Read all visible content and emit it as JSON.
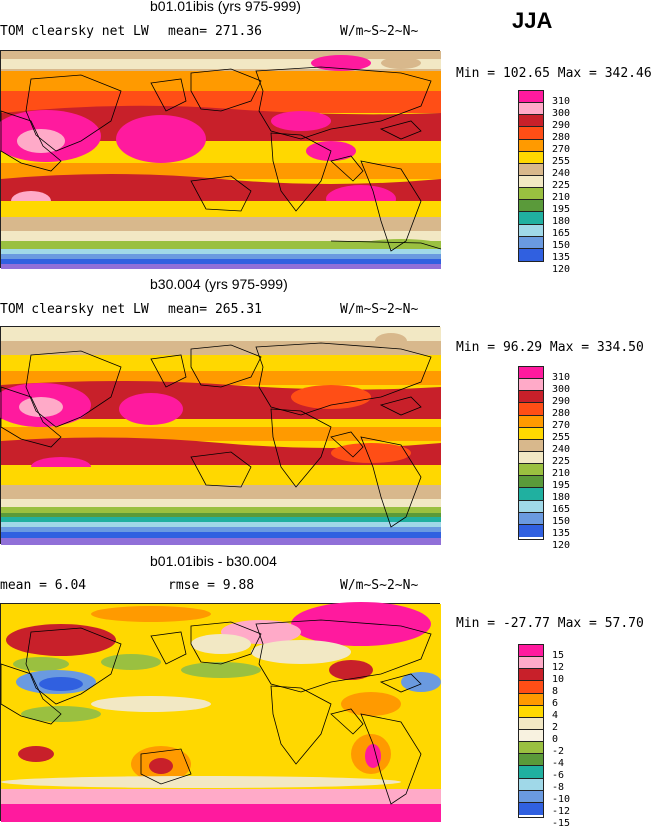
{
  "season": "JJA",
  "units_label": "W/m~S~2~N~",
  "field_label": "TOM clearsky net LW",
  "panels": [
    {
      "id": "panel-1",
      "title": "b01.01ibis (yrs 975-999)",
      "stat_text": "mean= 271.36",
      "minmax_text": "Min = 102.65 Max = 342.46",
      "colorbar": {
        "labels": [
          "310",
          "300",
          "290",
          "280",
          "270",
          "255",
          "240",
          "225",
          "210",
          "195",
          "180",
          "165",
          "150",
          "135",
          "120"
        ],
        "colors": [
          "#ff1a9e",
          "#ffaac8",
          "#c8202a",
          "#ff4e16",
          "#ff9a00",
          "#ffd800",
          "#d8b88c",
          "#f2e8c4",
          "#9ac040",
          "#5a9a3a",
          "#20b0a0",
          "#a0d8e8",
          "#6a9ae0",
          "#3060e0",
          "#0000c8",
          "#9070d8"
        ]
      }
    },
    {
      "id": "panel-2",
      "title": "b30.004 (yrs 975-999)",
      "stat_text": "mean= 265.31",
      "minmax_text": "Min =  96.29 Max = 334.50",
      "colorbar": {
        "labels": [
          "310",
          "300",
          "290",
          "280",
          "270",
          "255",
          "240",
          "225",
          "210",
          "195",
          "180",
          "165",
          "150",
          "135",
          "120"
        ],
        "colors": [
          "#ff1a9e",
          "#ffaac8",
          "#c8202a",
          "#ff4e16",
          "#ff9a00",
          "#ffd800",
          "#d8b88c",
          "#f2e8c4",
          "#9ac040",
          "#5a9a3a",
          "#20b0a0",
          "#a0d8e8",
          "#6a9ae0",
          "#3060e0",
          "#0000c8",
          "#9070d8"
        ]
      }
    },
    {
      "id": "panel-3",
      "title": "b01.01ibis - b30.004",
      "stat_mean_text": "mean =    6.04",
      "stat_rmse_text": "rmse =    9.88",
      "minmax_text": "Min = -27.77 Max =  57.70",
      "colorbar": {
        "labels": [
          "15",
          "12",
          "10",
          "8",
          "6",
          "4",
          "2",
          "0",
          "-2",
          "-4",
          "-6",
          "-8",
          "-10",
          "-12",
          "-15"
        ],
        "colors": [
          "#ff1a9e",
          "#ffaac8",
          "#c8202a",
          "#ff4e16",
          "#ff9a00",
          "#ffd800",
          "#f2e8c4",
          "#f8f2e0",
          "#9ac040",
          "#5a9a3a",
          "#20b0a0",
          "#a0d8e8",
          "#6a9ae0",
          "#3060e0",
          "#0000c8",
          "#9070d8"
        ]
      }
    }
  ],
  "chart_data": [
    {
      "type": "heatmap",
      "title": "b01.01ibis (yrs 975-999)",
      "subtitle": "TOM clearsky net LW",
      "units": "W/m~S~2~N~",
      "season": "JJA",
      "mean": 271.36,
      "min": 102.65,
      "max": 342.46,
      "contour_levels": [
        120,
        135,
        150,
        165,
        180,
        195,
        210,
        225,
        240,
        255,
        270,
        280,
        290,
        300,
        310
      ]
    },
    {
      "type": "heatmap",
      "title": "b30.004 (yrs 975-999)",
      "subtitle": "TOM clearsky net LW",
      "units": "W/m~S~2~N~",
      "season": "JJA",
      "mean": 265.31,
      "min": 96.29,
      "max": 334.5,
      "contour_levels": [
        120,
        135,
        150,
        165,
        180,
        195,
        210,
        225,
        240,
        255,
        270,
        280,
        290,
        300,
        310
      ]
    },
    {
      "type": "heatmap",
      "title": "b01.01ibis - b30.004",
      "units": "W/m~S~2~N~",
      "season": "JJA",
      "mean": 6.04,
      "rmse": 9.88,
      "min": -27.77,
      "max": 57.7,
      "contour_levels": [
        -15,
        -12,
        -10,
        -8,
        -6,
        -4,
        -2,
        0,
        2,
        4,
        6,
        8,
        10,
        12,
        15
      ]
    }
  ]
}
